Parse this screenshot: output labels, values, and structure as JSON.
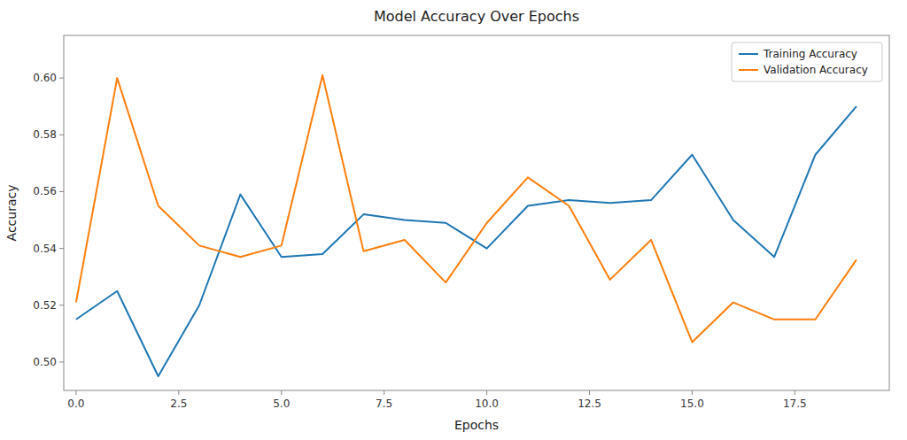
{
  "chart_data": {
    "type": "line",
    "title": "Model Accuracy Over Epochs",
    "x_label": "Epochs",
    "y_label": "Accuracy",
    "x": [
      0,
      1,
      2,
      3,
      4,
      5,
      6,
      7,
      8,
      9,
      10,
      11,
      12,
      13,
      14,
      15,
      16,
      17,
      18,
      19
    ],
    "series": [
      {
        "name": "Training Accuracy",
        "color": "#1f77b4",
        "values": [
          0.515,
          0.525,
          0.495,
          0.52,
          0.559,
          0.537,
          0.538,
          0.552,
          0.55,
          0.549,
          0.54,
          0.555,
          0.557,
          0.556,
          0.557,
          0.573,
          0.55,
          0.537,
          0.573,
          0.59
        ]
      },
      {
        "name": "Validation Accuracy",
        "color": "#ff7f0e",
        "values": [
          0.521,
          0.6,
          0.555,
          0.541,
          0.537,
          0.541,
          0.601,
          0.539,
          0.543,
          0.528,
          0.549,
          0.565,
          0.555,
          0.529,
          0.543,
          0.507,
          0.521,
          0.515,
          0.515,
          0.536
        ]
      }
    ],
    "xlim": [
      -0.3,
      19.8
    ],
    "xticks": [
      {
        "value": 0,
        "label": "0.0"
      },
      2.5,
      {
        "value": 5,
        "label": "5.0"
      },
      7.5,
      {
        "value": 10,
        "label": "10.0"
      },
      12.5,
      {
        "value": 15,
        "label": "15.0"
      },
      17.5
    ],
    "ylim": [
      0.49,
      0.615
    ],
    "yticks": [
      {
        "value": 0.5,
        "label": "0.50"
      },
      0.52,
      0.54,
      0.56,
      0.58,
      {
        "value": 0.6,
        "label": "0.60"
      }
    ],
    "grid": false,
    "legend": "upper right"
  }
}
